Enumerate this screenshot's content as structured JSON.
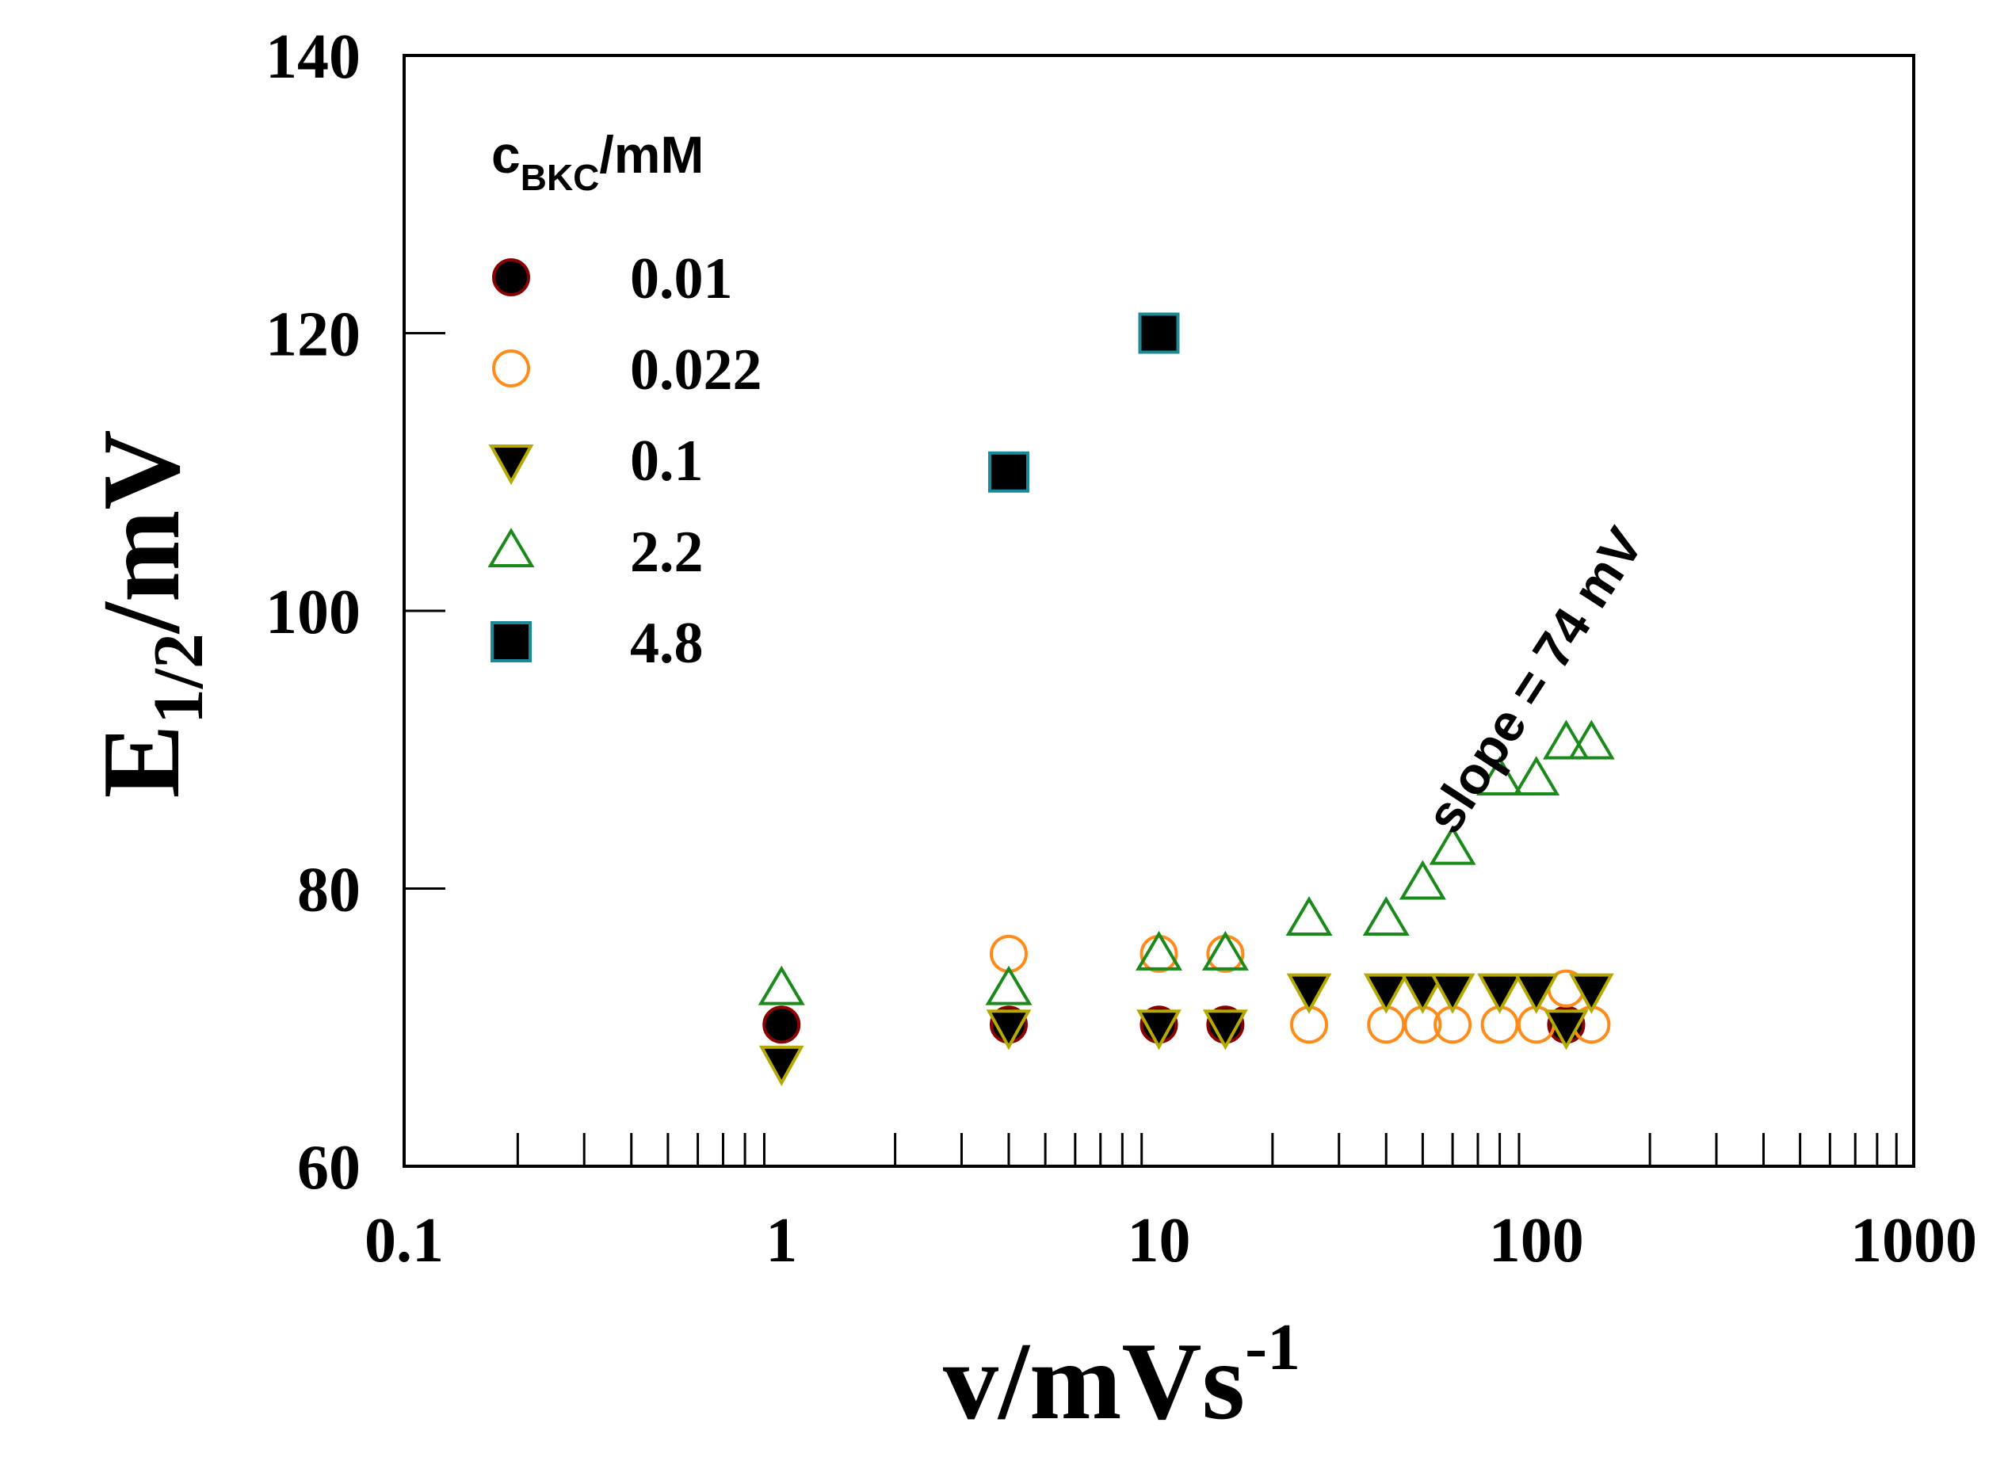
{
  "chart_data": {
    "type": "scatter",
    "title": "",
    "xlabel": "v/mVs",
    "xlabel_superscript": "-1",
    "ylabel": "E",
    "ylabel_subscript": "1/2",
    "ylabel_suffix": "/mV",
    "xscale": "log",
    "xlim": [
      0.1,
      1000
    ],
    "ylim": [
      60,
      140
    ],
    "x_ticks": [
      0.1,
      1,
      10,
      100,
      1000
    ],
    "x_tick_labels": [
      "0.1",
      "1",
      "10",
      "100",
      "1000"
    ],
    "y_ticks": [
      60,
      80,
      100,
      120,
      140
    ],
    "y_tick_labels": [
      "60",
      "80",
      "100",
      "120",
      "140"
    ],
    "grid": false,
    "legend": {
      "placement": "top-left",
      "title": "c",
      "title_subscript": "BKC",
      "title_suffix": "/mM"
    },
    "annotation": {
      "text": "slope = 74 mV",
      "near_x": 70,
      "near_y": 86,
      "angle_deg": -57
    },
    "series": [
      {
        "name": "0.01",
        "marker": "circle",
        "filled": true,
        "fill": "#000000",
        "stroke": "#8b0000",
        "points": [
          [
            1,
            70.2
          ],
          [
            4,
            70.2
          ],
          [
            10,
            70.2
          ],
          [
            15,
            70.2
          ],
          [
            120,
            70.2
          ]
        ]
      },
      {
        "name": "0.022",
        "marker": "circle",
        "filled": false,
        "fill": "none",
        "stroke": "#ff8c1a",
        "points": [
          [
            4,
            75.3
          ],
          [
            10,
            75.3
          ],
          [
            15,
            75.3
          ],
          [
            25,
            70.2
          ],
          [
            40,
            70.2
          ],
          [
            50,
            70.2
          ],
          [
            60,
            70.2
          ],
          [
            80,
            70.2
          ],
          [
            100,
            70.2
          ],
          [
            120,
            72.8
          ],
          [
            140,
            70.2
          ]
        ]
      },
      {
        "name": "0.1",
        "marker": "triangle-down",
        "filled": true,
        "fill": "#000000",
        "stroke": "#b5a800",
        "points": [
          [
            1,
            67.6
          ],
          [
            4,
            70.2
          ],
          [
            10,
            70.2
          ],
          [
            15,
            70.2
          ],
          [
            25,
            72.8
          ],
          [
            40,
            72.8
          ],
          [
            50,
            72.8
          ],
          [
            60,
            72.8
          ],
          [
            80,
            72.8
          ],
          [
            100,
            72.8
          ],
          [
            120,
            70.2
          ],
          [
            140,
            72.8
          ]
        ]
      },
      {
        "name": "2.2",
        "marker": "triangle-up",
        "filled": false,
        "fill": "none",
        "stroke": "#1a8a1a",
        "points": [
          [
            1,
            72.8
          ],
          [
            4,
            72.8
          ],
          [
            10,
            75.3
          ],
          [
            15,
            75.3
          ],
          [
            25,
            77.8
          ],
          [
            40,
            77.8
          ],
          [
            50,
            80.4
          ],
          [
            60,
            82.9
          ],
          [
            80,
            87.9
          ],
          [
            100,
            87.9
          ],
          [
            120,
            90.5
          ],
          [
            140,
            90.5
          ]
        ]
      },
      {
        "name": "4.8",
        "marker": "square",
        "filled": true,
        "fill": "#000000",
        "stroke": "#1a8a9a",
        "points": [
          [
            4,
            110
          ],
          [
            10,
            120
          ]
        ]
      }
    ]
  }
}
